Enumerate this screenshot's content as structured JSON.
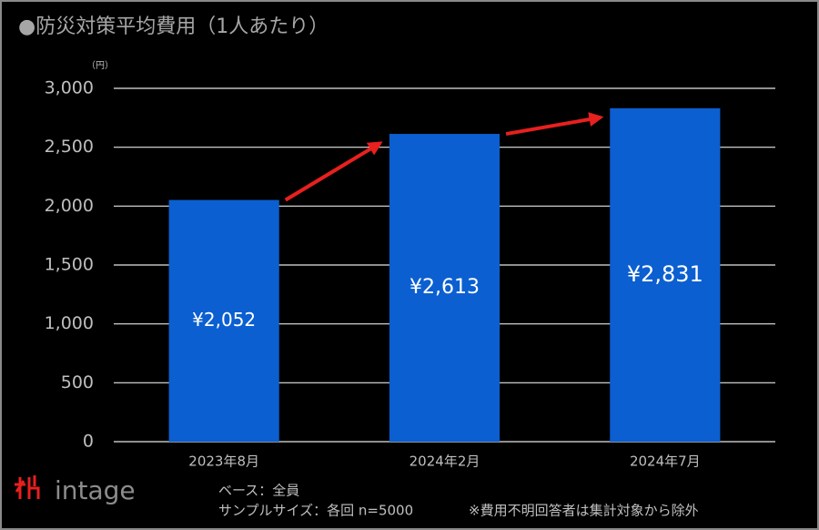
{
  "chart_data": {
    "type": "bar",
    "title": "●防災対策平均費用（1人あたり）",
    "unit": "（円）",
    "categories": [
      "2023年8月",
      "2024年2月",
      "2024年7月"
    ],
    "values": [
      2052,
      2613,
      2831
    ],
    "value_labels": [
      "¥2,052",
      "¥2,613",
      "¥2,831"
    ],
    "color": "#0b5fd0",
    "ylim": [
      0,
      3000
    ],
    "yticks": [
      0,
      500,
      {
        "value": 1000,
        "label": "1,000"
      },
      {
        "value": 1500,
        "label": "1,500"
      },
      {
        "value": 2000,
        "label": "2,000"
      },
      {
        "value": 2500,
        "label": "2,500"
      },
      {
        "value": 3000,
        "label": "3,000"
      }
    ],
    "grid": true,
    "brand": "intage",
    "base_note": "ベース：全員",
    "sample_note": "サンプルサイズ：各回 n=5000",
    "footnote": "※費用不明回答者は集計対象から除外"
  }
}
